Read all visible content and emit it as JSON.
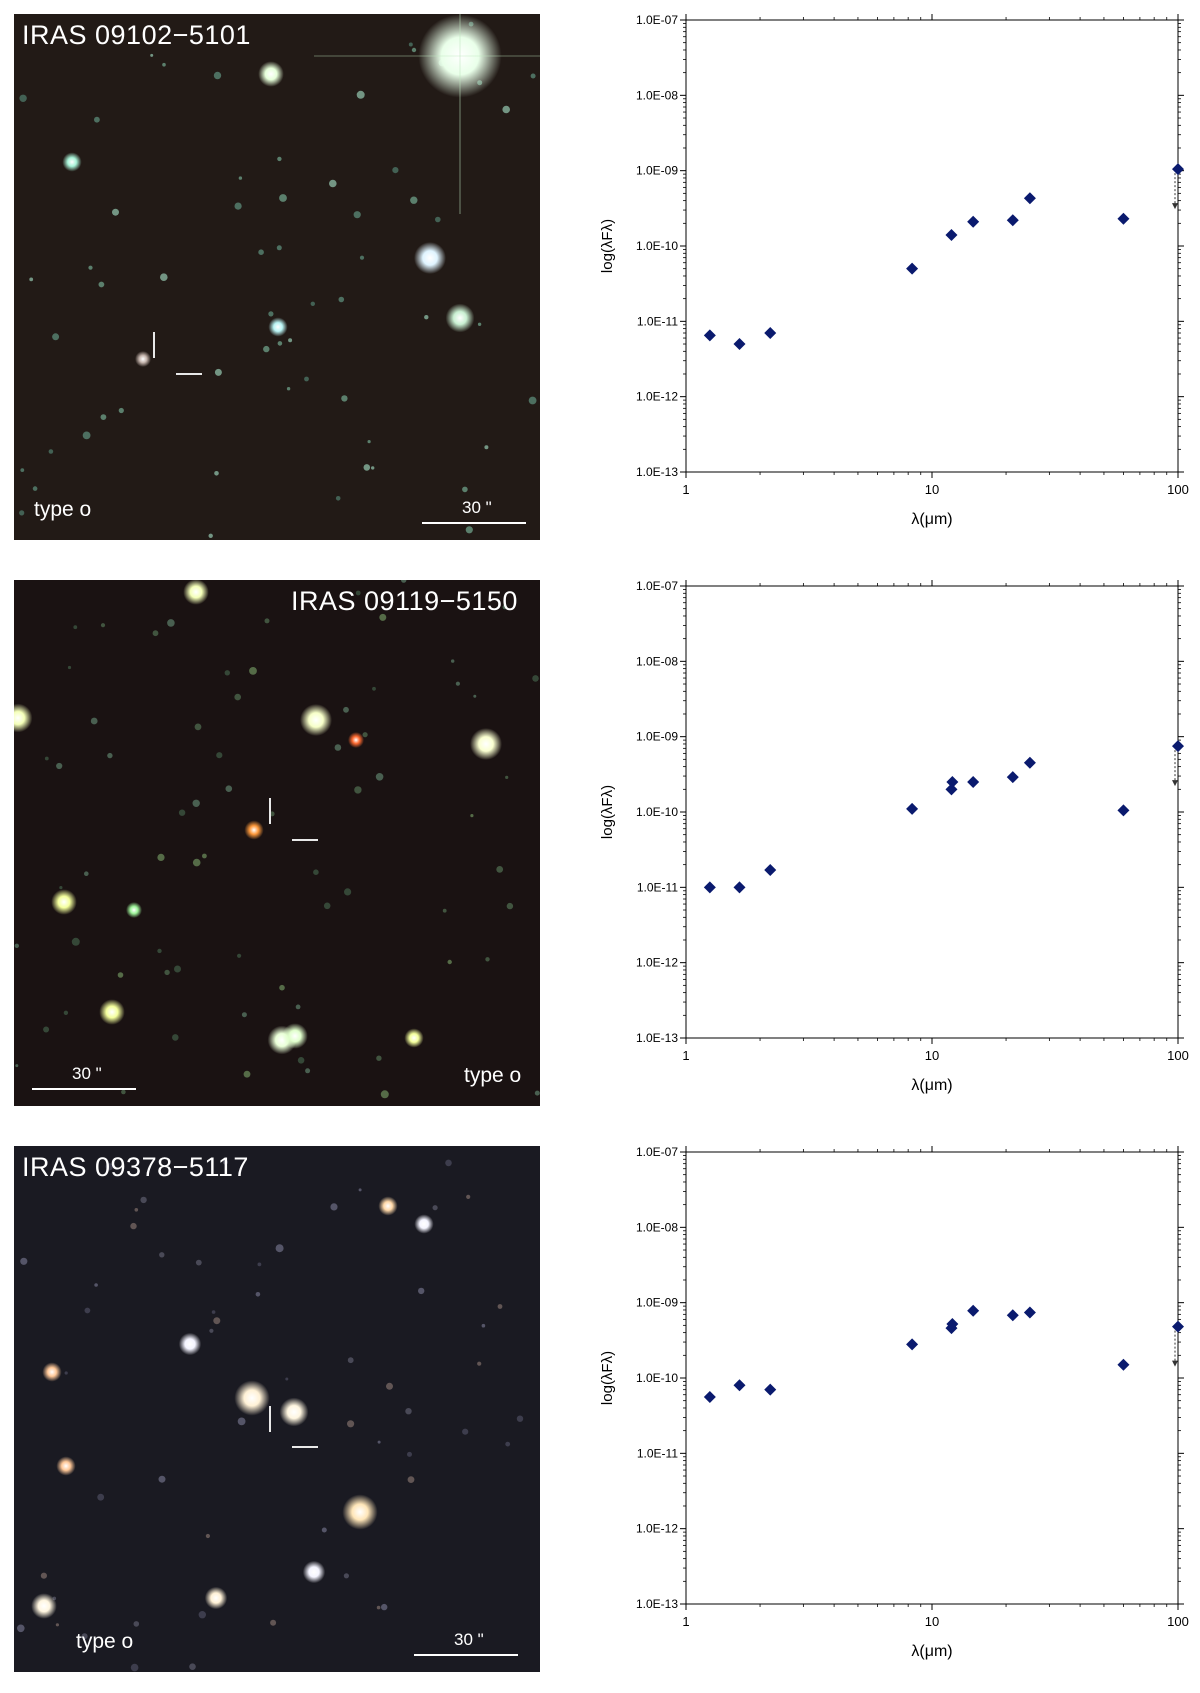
{
  "panels": [
    {
      "image": {
        "object": "IRAS 09102−5101",
        "type_label": "type o",
        "scale_label": "30 \"",
        "background": "#221a16"
      },
      "chart": {
        "type": "scatter",
        "xlabel": "λ(μm)",
        "ylabel": "log(λFλ)",
        "xscale": "log",
        "yscale": "log",
        "xlim": [
          1,
          100
        ],
        "ylim": [
          1e-13,
          1e-07
        ],
        "x_tick_labels": [
          "1",
          "10",
          "100"
        ],
        "y_tick_labels": [
          "1.0E-13",
          "1.0E-12",
          "1.0E-11",
          "1.0E-10",
          "1.0E-09",
          "1.0E-08",
          "1.0E-07"
        ]
      }
    },
    {
      "image": {
        "object": "IRAS 09119−5150",
        "type_label": "type o",
        "scale_label": "30 \"",
        "background": "#1a1212"
      },
      "chart": {
        "type": "scatter",
        "xlabel": "λ(μm)",
        "ylabel": "log(λFλ)",
        "xscale": "log",
        "yscale": "log",
        "xlim": [
          1,
          100
        ],
        "ylim": [
          1e-13,
          1e-07
        ],
        "x_tick_labels": [
          "1",
          "10",
          "100"
        ],
        "y_tick_labels": [
          "1.0E-13",
          "1.0E-12",
          "1.0E-11",
          "1.0E-10",
          "1.0E-09",
          "1.0E-08",
          "1.0E-07"
        ]
      }
    },
    {
      "image": {
        "object": "IRAS 09378−5117",
        "type_label": "type o",
        "scale_label": "30 \"",
        "background": "#1a1a22"
      },
      "chart": {
        "type": "scatter",
        "xlabel": "λ(μm)",
        "ylabel": "log(λFλ)",
        "xscale": "log",
        "yscale": "log",
        "xlim": [
          1,
          100
        ],
        "ylim": [
          1e-13,
          1e-07
        ],
        "x_tick_labels": [
          "1",
          "10",
          "100"
        ],
        "y_tick_labels": [
          "1.0E-13",
          "1.0E-12",
          "1.0E-11",
          "1.0E-10",
          "1.0E-09",
          "1.0E-08",
          "1.0E-07"
        ]
      }
    }
  ],
  "chart_data": [
    {
      "type": "scatter",
      "title": "",
      "xlabel": "λ(μm)",
      "ylabel": "log(λFλ)",
      "xscale": "log",
      "yscale": "log",
      "xlim": [
        1,
        100
      ],
      "ylim": [
        1e-13,
        1e-07
      ],
      "marker_color": "#0a1a6e",
      "points": [
        {
          "x": 1.25,
          "y": 6.5e-12
        },
        {
          "x": 1.65,
          "y": 5e-12
        },
        {
          "x": 2.2,
          "y": 7e-12
        },
        {
          "x": 8.3,
          "y": 5e-11
        },
        {
          "x": 12,
          "y": 1.4e-10
        },
        {
          "x": 14.7,
          "y": 2.1e-10
        },
        {
          "x": 21.3,
          "y": 2.2e-10
        },
        {
          "x": 25,
          "y": 4.3e-10
        },
        {
          "x": 60,
          "y": 2.3e-10
        },
        {
          "x": 100,
          "y": 1.05e-09
        }
      ],
      "upper_limits": [
        {
          "x": 100,
          "y": 1.05e-09
        }
      ]
    },
    {
      "type": "scatter",
      "title": "",
      "xlabel": "λ(μm)",
      "ylabel": "log(λFλ)",
      "xscale": "log",
      "yscale": "log",
      "xlim": [
        1,
        100
      ],
      "ylim": [
        1e-13,
        1e-07
      ],
      "marker_color": "#0a1a6e",
      "points": [
        {
          "x": 1.25,
          "y": 1e-11
        },
        {
          "x": 1.65,
          "y": 1e-11
        },
        {
          "x": 2.2,
          "y": 1.7e-11
        },
        {
          "x": 8.3,
          "y": 1.1e-10
        },
        {
          "x": 12,
          "y": 2e-10
        },
        {
          "x": 12.1,
          "y": 2.5e-10
        },
        {
          "x": 14.7,
          "y": 2.5e-10
        },
        {
          "x": 21.3,
          "y": 2.9e-10
        },
        {
          "x": 25,
          "y": 4.5e-10
        },
        {
          "x": 60,
          "y": 1.05e-10
        },
        {
          "x": 100,
          "y": 7.5e-10
        }
      ],
      "upper_limits": [
        {
          "x": 100,
          "y": 7.5e-10
        }
      ]
    },
    {
      "type": "scatter",
      "title": "",
      "xlabel": "λ(μm)",
      "ylabel": "log(λFλ)",
      "xscale": "log",
      "yscale": "log",
      "xlim": [
        1,
        100
      ],
      "ylim": [
        1e-13,
        1e-07
      ],
      "marker_color": "#0a1a6e",
      "points": [
        {
          "x": 1.25,
          "y": 5.6e-11
        },
        {
          "x": 1.65,
          "y": 8e-11
        },
        {
          "x": 2.2,
          "y": 7e-11
        },
        {
          "x": 8.3,
          "y": 2.8e-10
        },
        {
          "x": 12,
          "y": 4.6e-10
        },
        {
          "x": 12.1,
          "y": 5.2e-10
        },
        {
          "x": 14.7,
          "y": 7.8e-10
        },
        {
          "x": 21.3,
          "y": 6.8e-10
        },
        {
          "x": 25,
          "y": 7.4e-10
        },
        {
          "x": 60,
          "y": 1.5e-10
        },
        {
          "x": 100,
          "y": 4.8e-10
        }
      ],
      "upper_limits": [
        {
          "x": 100,
          "y": 4.8e-10
        }
      ]
    }
  ]
}
